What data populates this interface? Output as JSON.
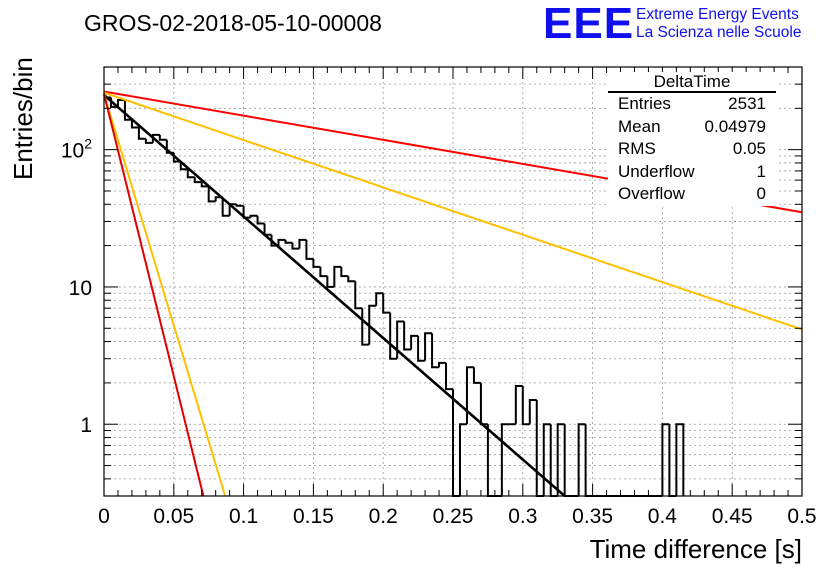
{
  "chart_data": {
    "type": "histogram",
    "title": "GROS-02-2018-05-10-00008",
    "xlabel": "Time difference [s]",
    "ylabel": "Entries/bin",
    "xlim": [
      0,
      0.5
    ],
    "ylim": [
      0.3,
      400
    ],
    "y_scale": "log",
    "grid": true,
    "x_ticks": [
      "0",
      "0.05",
      "0.1",
      "0.15",
      "0.2",
      "0.25",
      "0.3",
      "0.35",
      "0.4",
      "0.45",
      "0.5"
    ],
    "y_ticks": [
      "1",
      "10",
      "10^2"
    ],
    "bin_width": 0.005,
    "histogram": {
      "name": "DeltaTime",
      "bins": [
        {
          "x": 0.0,
          "y": 240
        },
        {
          "x": 0.005,
          "y": 205
        },
        {
          "x": 0.01,
          "y": 230
        },
        {
          "x": 0.015,
          "y": 165
        },
        {
          "x": 0.02,
          "y": 145
        },
        {
          "x": 0.025,
          "y": 120
        },
        {
          "x": 0.03,
          "y": 112
        },
        {
          "x": 0.035,
          "y": 128
        },
        {
          "x": 0.04,
          "y": 118
        },
        {
          "x": 0.045,
          "y": 95
        },
        {
          "x": 0.05,
          "y": 82
        },
        {
          "x": 0.055,
          "y": 72
        },
        {
          "x": 0.06,
          "y": 63
        },
        {
          "x": 0.065,
          "y": 58
        },
        {
          "x": 0.07,
          "y": 54
        },
        {
          "x": 0.075,
          "y": 42
        },
        {
          "x": 0.08,
          "y": 45
        },
        {
          "x": 0.085,
          "y": 33
        },
        {
          "x": 0.09,
          "y": 40
        },
        {
          "x": 0.095,
          "y": 39
        },
        {
          "x": 0.1,
          "y": 32
        },
        {
          "x": 0.105,
          "y": 33
        },
        {
          "x": 0.11,
          "y": 29
        },
        {
          "x": 0.115,
          "y": 24
        },
        {
          "x": 0.12,
          "y": 20
        },
        {
          "x": 0.125,
          "y": 22
        },
        {
          "x": 0.13,
          "y": 21
        },
        {
          "x": 0.135,
          "y": 19
        },
        {
          "x": 0.14,
          "y": 22
        },
        {
          "x": 0.145,
          "y": 16
        },
        {
          "x": 0.15,
          "y": 14
        },
        {
          "x": 0.155,
          "y": 12
        },
        {
          "x": 0.16,
          "y": 10
        },
        {
          "x": 0.165,
          "y": 14
        },
        {
          "x": 0.17,
          "y": 12
        },
        {
          "x": 0.175,
          "y": 11
        },
        {
          "x": 0.18,
          "y": 7
        },
        {
          "x": 0.185,
          "y": 3.8
        },
        {
          "x": 0.19,
          "y": 7.3
        },
        {
          "x": 0.195,
          "y": 9
        },
        {
          "x": 0.2,
          "y": 6.5
        },
        {
          "x": 0.205,
          "y": 3
        },
        {
          "x": 0.21,
          "y": 5.6
        },
        {
          "x": 0.215,
          "y": 3.5
        },
        {
          "x": 0.22,
          "y": 4.4
        },
        {
          "x": 0.225,
          "y": 2.9
        },
        {
          "x": 0.23,
          "y": 4.6
        },
        {
          "x": 0.235,
          "y": 2.6
        },
        {
          "x": 0.24,
          "y": 2.8
        },
        {
          "x": 0.245,
          "y": 1.8
        },
        {
          "x": 0.25,
          "y": 0.1
        },
        {
          "x": 0.255,
          "y": 1
        },
        {
          "x": 0.26,
          "y": 2.6
        },
        {
          "x": 0.265,
          "y": 2
        },
        {
          "x": 0.27,
          "y": 1
        },
        {
          "x": 0.275,
          "y": 0.1
        },
        {
          "x": 0.28,
          "y": 0.1
        },
        {
          "x": 0.285,
          "y": 1
        },
        {
          "x": 0.29,
          "y": 1
        },
        {
          "x": 0.295,
          "y": 1.9
        },
        {
          "x": 0.3,
          "y": 1
        },
        {
          "x": 0.305,
          "y": 1.5
        },
        {
          "x": 0.31,
          "y": 0.1
        },
        {
          "x": 0.315,
          "y": 1
        },
        {
          "x": 0.32,
          "y": 0.1
        },
        {
          "x": 0.325,
          "y": 1
        },
        {
          "x": 0.33,
          "y": 0.1
        },
        {
          "x": 0.335,
          "y": 0.1
        },
        {
          "x": 0.34,
          "y": 1
        },
        {
          "x": 0.345,
          "y": 0.1
        },
        {
          "x": 0.35,
          "y": 0.1
        },
        {
          "x": 0.355,
          "y": 0.1
        },
        {
          "x": 0.36,
          "y": 0.1
        },
        {
          "x": 0.365,
          "y": 0.1
        },
        {
          "x": 0.37,
          "y": 0.1
        },
        {
          "x": 0.375,
          "y": 0.1
        },
        {
          "x": 0.38,
          "y": 0.1
        },
        {
          "x": 0.385,
          "y": 0.1
        },
        {
          "x": 0.39,
          "y": 0.1
        },
        {
          "x": 0.395,
          "y": 0.1
        },
        {
          "x": 0.4,
          "y": 1
        },
        {
          "x": 0.405,
          "y": 0.1
        },
        {
          "x": 0.41,
          "y": 1
        }
      ]
    },
    "series": [
      {
        "color": "#000000",
        "x": [
          0,
          0.33
        ],
        "y": [
          250,
          0.3
        ]
      },
      {
        "color": "#ff0000",
        "x": [
          0,
          0.5
        ],
        "y": [
          265,
          35
        ]
      },
      {
        "color": "#ffc000",
        "x": [
          0,
          0.5
        ],
        "y": [
          260,
          4.9
        ]
      },
      {
        "color": "#ffc000",
        "x": [
          0,
          0.0868
        ],
        "y": [
          255,
          0.3
        ]
      },
      {
        "color": "#e00000",
        "x": [
          0,
          0.0712
        ],
        "y": [
          255,
          0.3
        ]
      }
    ],
    "stats_box": {
      "title": "DeltaTime",
      "rows": [
        {
          "label": "Entries",
          "value": "2531"
        },
        {
          "label": "Mean",
          "value": "0.04979"
        },
        {
          "label": "RMS",
          "value": "0.05"
        },
        {
          "label": "Underflow",
          "value": "1"
        },
        {
          "label": "Overflow",
          "value": "0"
        }
      ]
    }
  },
  "logo": {
    "text": "EEE",
    "line1": "Extreme Energy Events",
    "line2": "La Scienza nelle Scuole",
    "color": "#1010ee"
  }
}
